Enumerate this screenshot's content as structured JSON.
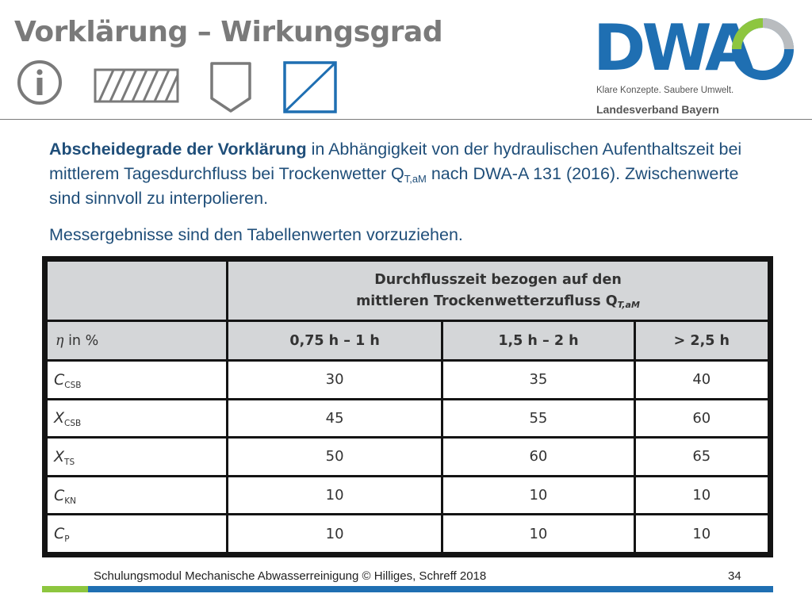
{
  "slide": {
    "title": "Vorklärung – Wirkungsgrad",
    "icons": [
      "info-icon",
      "hatched-rectangle-icon",
      "shield-pentagon-icon",
      "diagonal-square-icon"
    ],
    "logo": {
      "wordmark": "DWA",
      "tagline": "Klare Konzepte. Saubere Umwelt.",
      "region": "Landesverband Bayern"
    },
    "intro": {
      "bold": "Abscheidegrade der Vorklärung",
      "text_before_sub": " in Abhängigkeit von der hydraulischen Aufenthaltszeit bei mittlerem Tagesdurchfluss bei Trockenwetter Q",
      "subscript": "T,aM",
      "text_after_sub": " nach DWA-A 131 (2016). Zwischenwerte sind sinnvoll zu interpolieren."
    },
    "note": "Messergebnisse sind den Tabellenwerten vorzuziehen."
  },
  "table": {
    "header_line1": "Durchflusszeit bezogen auf den",
    "header_line2": "mittleren Trockenwetterzufluss Q",
    "header_sub": "T,aM",
    "eta_symbol": "η",
    "eta_label": " in %",
    "columns": [
      "0,75 h – 1 h",
      "1,5 h – 2 h",
      "> 2,5 h"
    ],
    "rows": [
      {
        "symbol": "C",
        "sub": "CSB",
        "values": [
          "30",
          "35",
          "40"
        ]
      },
      {
        "symbol": "X",
        "sub": "CSB",
        "values": [
          "45",
          "55",
          "60"
        ]
      },
      {
        "symbol": "X",
        "sub": "TS",
        "values": [
          "50",
          "60",
          "65"
        ]
      },
      {
        "symbol": "C",
        "sub": "KN",
        "values": [
          "10",
          "10",
          "10"
        ]
      },
      {
        "symbol": "C",
        "sub": "P",
        "values": [
          "10",
          "10",
          "10"
        ]
      }
    ]
  },
  "footer": {
    "text": "Schulungsmodul Mechanische Abwasserreinigung © Hilliges, Schreff  2018",
    "page": "34"
  },
  "colors": {
    "title": "#7a7a7a",
    "icon_gray": "#7a7a7a",
    "icon_blue": "#1f6fb2",
    "logo_blue": "#1f6fb2",
    "logo_green": "#8dc63f",
    "text_blue": "#1f4e79",
    "table_header": "#d4d6d8",
    "footer_green": "#8dc63f",
    "footer_blue": "#1f6fb2"
  }
}
